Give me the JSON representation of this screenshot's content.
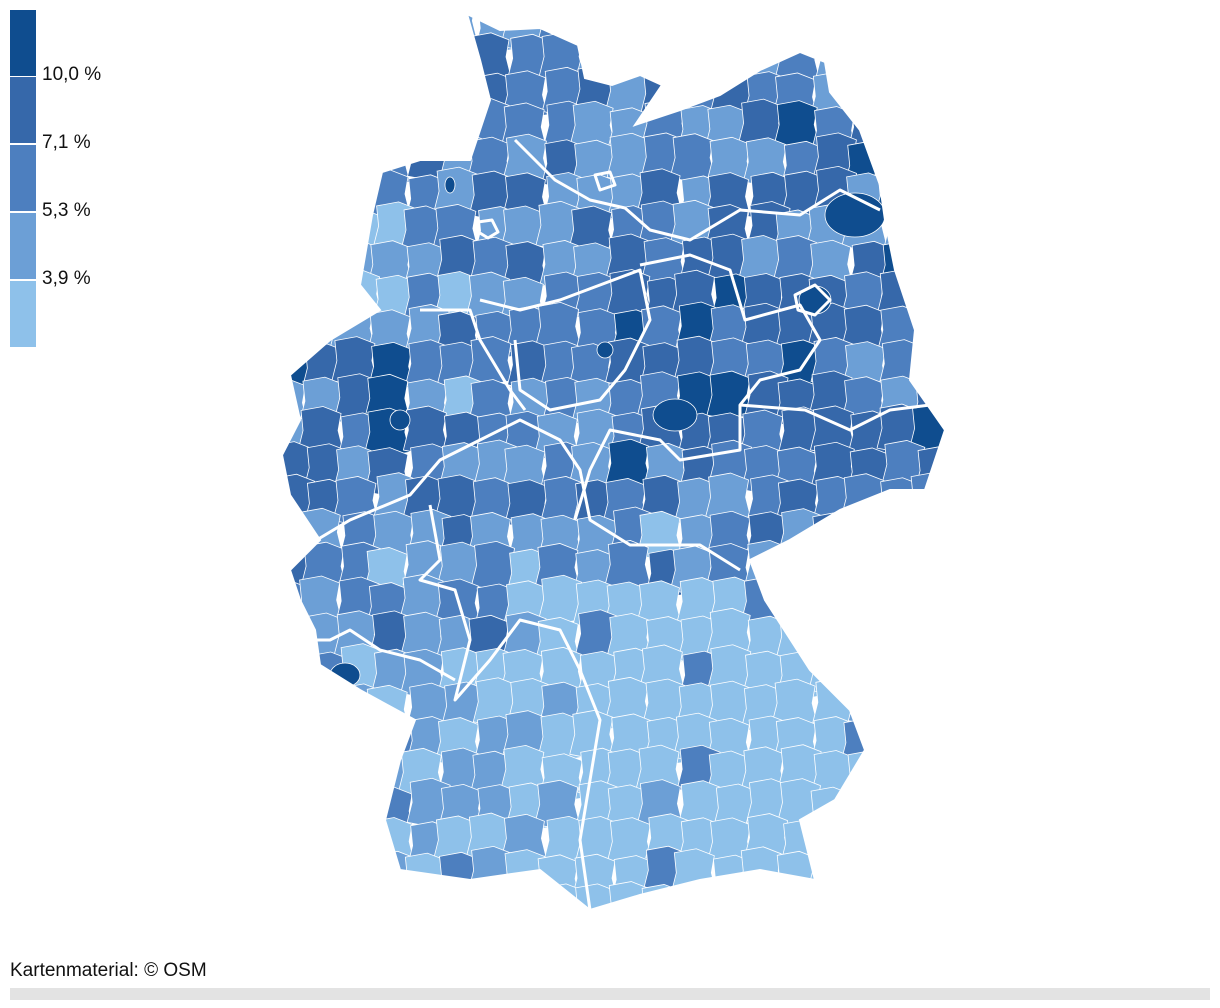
{
  "legend": {
    "colors": [
      "#0f4d8f",
      "#3668aa",
      "#4d7fbf",
      "#6c9fd6",
      "#8ec1ea"
    ],
    "labels": [
      "10,0 %",
      "7,1 %",
      "5,3 %",
      "3,9 %"
    ]
  },
  "map": {
    "region": "Germany districts choropleth",
    "state_border_color": "#ffffff"
  },
  "attribution": "Kartenmaterial: © OSM"
}
